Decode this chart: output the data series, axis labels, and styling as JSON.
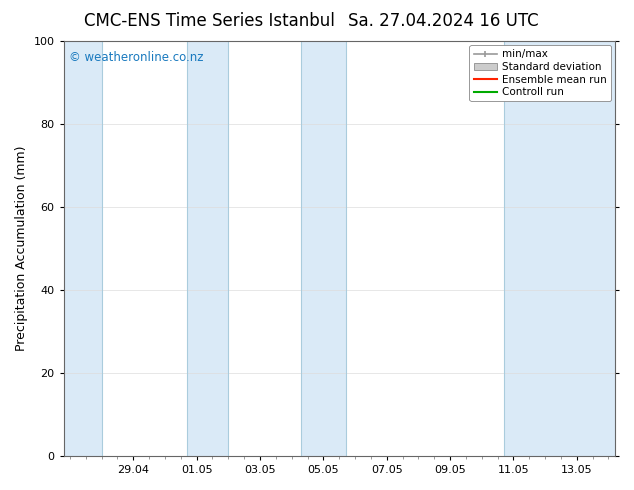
{
  "title_left": "CMC-ENS Time Series Istanbul",
  "title_right": "Sa. 27.04.2024 16 UTC",
  "ylabel": "Precipitation Accumulation (mm)",
  "ylim": [
    0,
    100
  ],
  "yticks": [
    0,
    20,
    40,
    60,
    80,
    100
  ],
  "background_color": "#ffffff",
  "plot_bg_color": "#ffffff",
  "watermark_text": "© weatheronline.co.nz",
  "watermark_color": "#1a7abf",
  "shaded_band_color": "#daeaf7",
  "shaded_band_edge_color": "#aaccdd",
  "legend_labels": [
    "min/max",
    "Standard deviation",
    "Ensemble mean run",
    "Controll run"
  ],
  "legend_line_color": "#999999",
  "legend_std_color": "#cccccc",
  "legend_ens_color": "#ff2200",
  "legend_ctrl_color": "#00aa00",
  "xtick_labels": [
    "29.04",
    "01.05",
    "03.05",
    "05.05",
    "07.05",
    "09.05",
    "11.05",
    "13.05"
  ],
  "xtick_positions": [
    2.0,
    4.0,
    6.0,
    8.0,
    10.0,
    12.0,
    14.0,
    16.0
  ],
  "xlim": [
    -0.2,
    17.2
  ],
  "bands": [
    [
      -0.2,
      1.0
    ],
    [
      3.7,
      5.0
    ],
    [
      7.3,
      8.7
    ],
    [
      13.7,
      17.2
    ]
  ],
  "title_fontsize": 12,
  "axis_label_fontsize": 9,
  "tick_fontsize": 8,
  "legend_fontsize": 7.5
}
